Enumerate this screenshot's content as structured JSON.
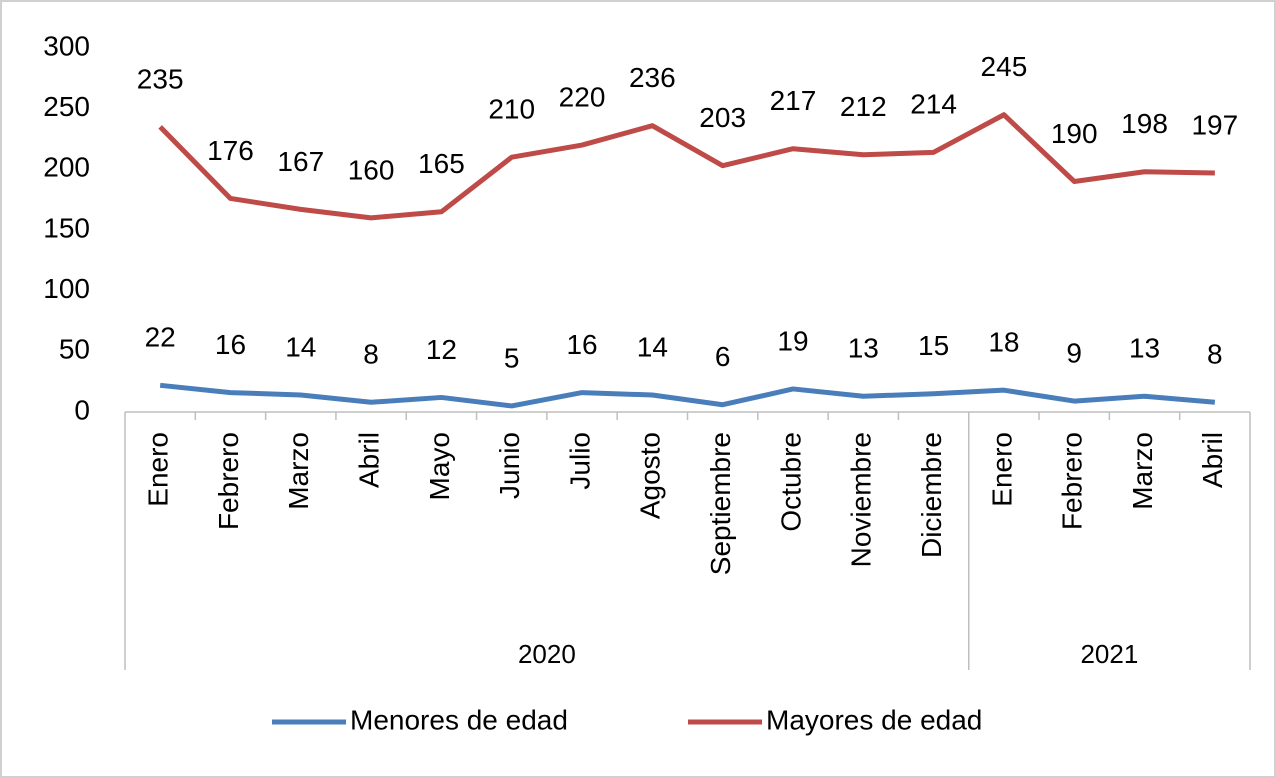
{
  "chart_data": {
    "type": "line",
    "groups": [
      {
        "label": "2020",
        "categories": [
          "Enero",
          "Febrero",
          "Marzo",
          "Abril",
          "Mayo",
          "Junio",
          "Julio",
          "Agosto",
          "Septiembre",
          "Octubre",
          "Noviembre",
          "Diciembre"
        ]
      },
      {
        "label": "2021",
        "categories": [
          "Enero",
          "Febrero",
          "Marzo",
          "Abril"
        ]
      }
    ],
    "series": [
      {
        "name": "Menores de edad",
        "color": "#4a7ebb",
        "values": [
          22,
          16,
          14,
          8,
          12,
          5,
          16,
          14,
          6,
          19,
          13,
          15,
          18,
          9,
          13,
          8
        ]
      },
      {
        "name": "Mayores de edad",
        "color": "#be4b48",
        "values": [
          235,
          176,
          167,
          160,
          165,
          210,
          220,
          236,
          203,
          217,
          212,
          214,
          245,
          190,
          198,
          197
        ]
      }
    ],
    "ylim": [
      0,
      300
    ],
    "yticks": [
      0,
      50,
      100,
      150,
      200,
      250,
      300
    ],
    "grid": false,
    "legend": "bottom"
  }
}
